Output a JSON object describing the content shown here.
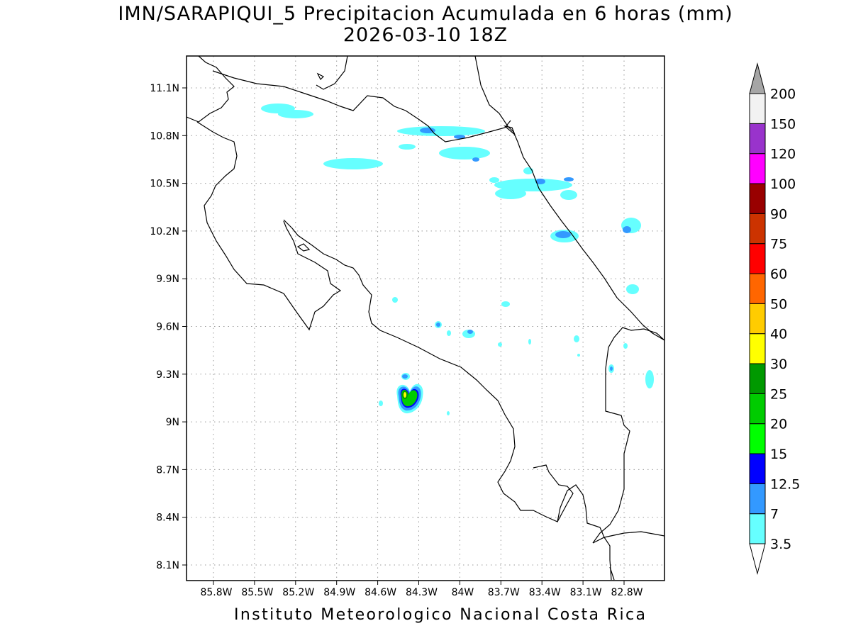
{
  "title": {
    "line1": "IMN/SARAPIQUI_5 Precipitacion Acumulada en 6 horas (mm)",
    "line2": "2026-03-10 18Z"
  },
  "footer": "Instituto Meteorologico Nacional Costa Rica",
  "map": {
    "lat_labels": [
      "11.1N",
      "10.8N",
      "10.5N",
      "10.2N",
      "9.9N",
      "9.6N",
      "9.3N",
      "9N",
      "8.7N",
      "8.4N",
      "8.1N"
    ],
    "lon_labels": [
      "85.8W",
      "85.5W",
      "85.2W",
      "84.9W",
      "84.6W",
      "84.3W",
      "84W",
      "83.7W",
      "83.4W",
      "83.1W",
      "82.8W"
    ],
    "gridlines": "dotted"
  },
  "colorbar": {
    "labels": [
      "3.5",
      "7",
      "12.5",
      "15",
      "20",
      "25",
      "30",
      "40",
      "50",
      "60",
      "75",
      "90",
      "100",
      "120",
      "150",
      "200"
    ],
    "colors": [
      "#66ffff",
      "#3399ff",
      "#0000ff",
      "#00ff00",
      "#00cc00",
      "#009900",
      "#ffff00",
      "#ffcc00",
      "#ff6600",
      "#ff0000",
      "#cc3300",
      "#990000",
      "#ff00ff",
      "#9933cc",
      "#f2f2f2",
      "#a6a6a6"
    ]
  }
}
